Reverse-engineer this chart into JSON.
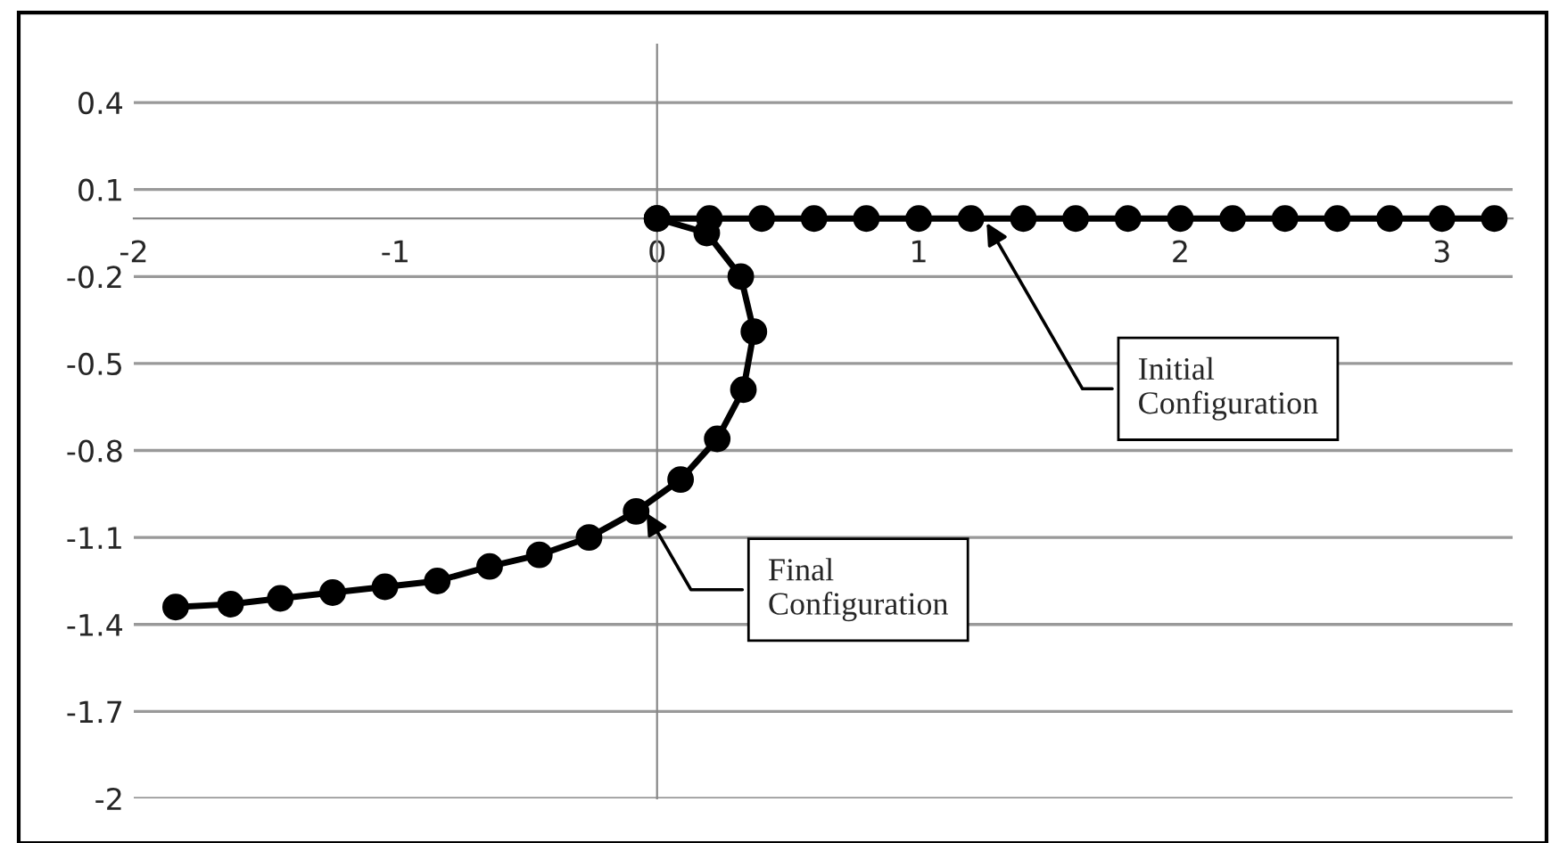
{
  "chart_data": {
    "type": "line",
    "series": [
      {
        "color": "#000000",
        "x": [
          0,
          0.2,
          0.4,
          0.6,
          0.8,
          1.0,
          1.2,
          1.4,
          1.6,
          1.8,
          2.0,
          2.2,
          2.4,
          2.6,
          2.8,
          3.0,
          3.2
        ],
        "values": [
          0,
          0,
          0,
          0,
          0,
          0,
          0,
          0,
          0,
          0,
          0,
          0,
          0,
          0,
          0,
          0,
          0
        ]
      },
      {
        "color": "#000000",
        "x": [
          0,
          0.19,
          0.32,
          0.37,
          0.33,
          0.23,
          0.09,
          -0.08,
          -0.26,
          -0.45,
          -0.64,
          -0.84,
          -1.04,
          -1.24,
          -1.44,
          -1.63,
          -1.84
        ],
        "values": [
          0,
          -0.05,
          -0.2,
          -0.39,
          -0.59,
          -0.76,
          -0.9,
          -1.01,
          -1.1,
          -1.16,
          -1.2,
          -1.25,
          -1.27,
          -1.29,
          -1.31,
          -1.33,
          -1.34
        ]
      }
    ],
    "xlim": [
      -2,
      3.27
    ],
    "xticks": [
      -2,
      -1,
      0,
      1,
      2,
      3
    ],
    "ylim": [
      -2,
      0.6
    ],
    "yticks": [
      -2,
      -1.7,
      -1.4,
      -1.1,
      -0.8,
      -0.5,
      -0.2,
      0.1,
      0.4
    ],
    "grid": "y",
    "marker": "circle",
    "line_style": "solid",
    "annotations": [
      {
        "text": "Initial\nConfiguration",
        "x": 1.25,
        "y": 0
      },
      {
        "text": "Final\nConfiguration",
        "x": -0.05,
        "y": -1.0
      }
    ]
  }
}
